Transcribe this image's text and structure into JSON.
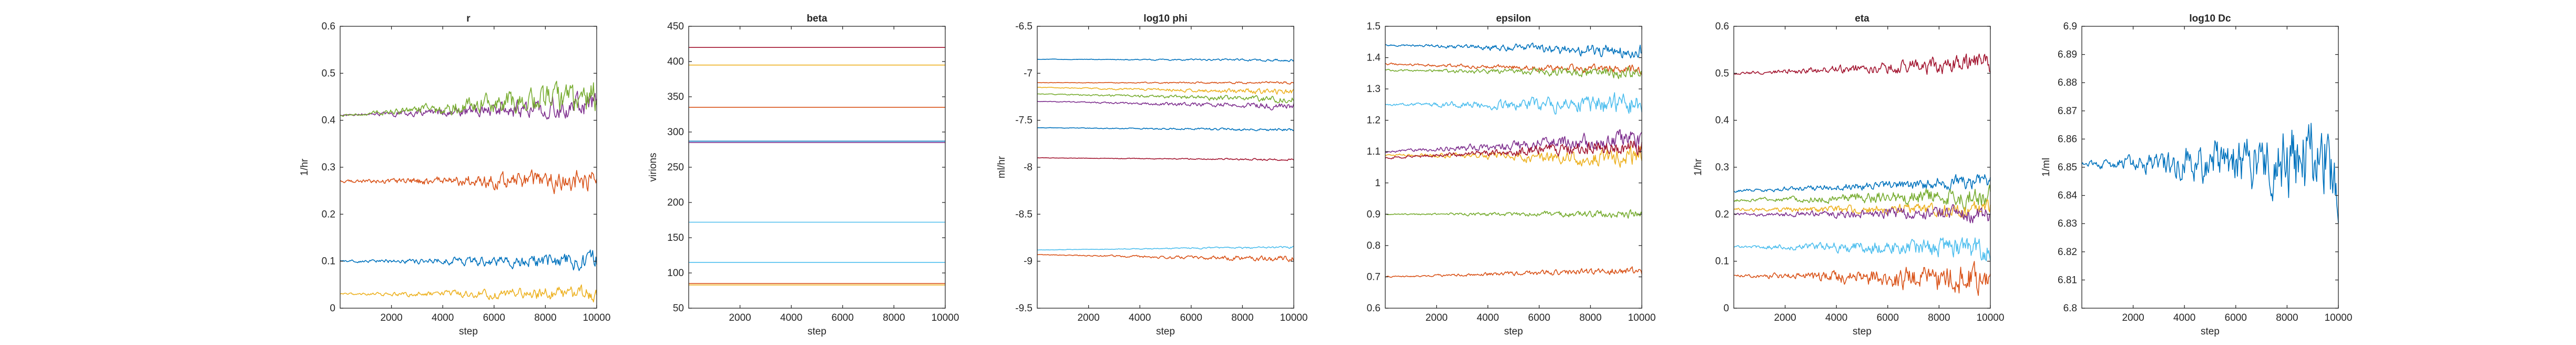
{
  "figure": {
    "line_colors": [
      "#0072BD",
      "#D95319",
      "#EDB120",
      "#7E2F8E",
      "#77AC30",
      "#4DBEEE",
      "#A2142F"
    ]
  },
  "chart_data": [
    {
      "type": "line",
      "title": "r",
      "xlabel": "step",
      "ylabel": "1/hr",
      "xlim": [
        0,
        10000
      ],
      "ylim": [
        0,
        0.6
      ],
      "xticks": [
        2000,
        4000,
        6000,
        8000,
        10000
      ],
      "yticks": [
        0,
        0.1,
        0.2,
        0.3,
        0.4,
        0.5,
        0.6
      ],
      "ytick_labels": [
        "0",
        "0.1",
        "0.2",
        "0.3",
        "0.4",
        "0.5",
        "0.6"
      ],
      "grid": false,
      "series": [
        {
          "color": "#0072BD",
          "start": 0.1,
          "end": 0.1,
          "noise_start": 0.002,
          "noise_end": 0.022
        },
        {
          "color": "#D95319",
          "start": 0.27,
          "end": 0.27,
          "noise_start": 0.003,
          "noise_end": 0.028
        },
        {
          "color": "#EDB120",
          "start": 0.03,
          "end": 0.03,
          "noise_start": 0.002,
          "noise_end": 0.018
        },
        {
          "color": "#7E2F8E",
          "start": 0.41,
          "end": 0.43,
          "noise_start": 0.002,
          "noise_end": 0.03
        },
        {
          "color": "#77AC30",
          "start": 0.41,
          "end": 0.45,
          "noise_start": 0.002,
          "noise_end": 0.04
        }
      ]
    },
    {
      "type": "line",
      "title": "beta",
      "xlabel": "step",
      "ylabel": "virions",
      "xlim": [
        0,
        10000
      ],
      "ylim": [
        50,
        450
      ],
      "xticks": [
        2000,
        4000,
        6000,
        8000,
        10000
      ],
      "yticks": [
        50,
        100,
        150,
        200,
        250,
        300,
        350,
        400,
        450
      ],
      "ytick_labels": [
        "50",
        "100",
        "150",
        "200",
        "250",
        "300",
        "350",
        "400",
        "450"
      ],
      "grid": false,
      "series": [
        {
          "color": "#A2142F",
          "start": 420,
          "end": 420,
          "noise_start": 0,
          "noise_end": 0
        },
        {
          "color": "#EDB120",
          "start": 395,
          "end": 395,
          "noise_start": 0,
          "noise_end": 0
        },
        {
          "color": "#D95319",
          "start": 335,
          "end": 335,
          "noise_start": 0,
          "noise_end": 0
        },
        {
          "color": "#0072BD",
          "start": 287,
          "end": 287,
          "noise_start": 0,
          "noise_end": 0
        },
        {
          "color": "#7E2F8E",
          "start": 285,
          "end": 285,
          "noise_start": 0,
          "noise_end": 0
        },
        {
          "color": "#4DBEEE",
          "start": 172,
          "end": 172,
          "noise_start": 0,
          "noise_end": 0
        },
        {
          "color": "#4DBEEE",
          "start": 115,
          "end": 115,
          "noise_start": 0,
          "noise_end": 0
        },
        {
          "color": "#D95319",
          "start": 85,
          "end": 85,
          "noise_start": 0,
          "noise_end": 0
        },
        {
          "color": "#EDB120",
          "start": 83,
          "end": 83,
          "noise_start": 0,
          "noise_end": 0
        }
      ]
    },
    {
      "type": "line",
      "title": "log10 phi",
      "xlabel": "step",
      "ylabel": "ml/hr",
      "xlim": [
        0,
        10000
      ],
      "ylim": [
        -9.5,
        -6.5
      ],
      "xticks": [
        2000,
        4000,
        6000,
        8000,
        10000
      ],
      "yticks": [
        -9.5,
        -9,
        -8.5,
        -8,
        -7.5,
        -7,
        -6.5
      ],
      "ytick_labels": [
        "-9.5",
        "-9",
        "-8.5",
        "-8",
        "-7.5",
        "-7",
        "-6.5"
      ],
      "grid": false,
      "series": [
        {
          "color": "#0072BD",
          "start": -6.85,
          "end": -6.86,
          "noise_start": 0.002,
          "noise_end": 0.015
        },
        {
          "color": "#D95319",
          "start": -7.1,
          "end": -7.1,
          "noise_start": 0.002,
          "noise_end": 0.015
        },
        {
          "color": "#EDB120",
          "start": -7.15,
          "end": -7.2,
          "noise_start": 0.003,
          "noise_end": 0.035
        },
        {
          "color": "#77AC30",
          "start": -7.22,
          "end": -7.28,
          "noise_start": 0.003,
          "noise_end": 0.04
        },
        {
          "color": "#7E2F8E",
          "start": -7.3,
          "end": -7.35,
          "noise_start": 0.003,
          "noise_end": 0.04
        },
        {
          "color": "#0072BD",
          "start": -7.58,
          "end": -7.6,
          "noise_start": 0.002,
          "noise_end": 0.018
        },
        {
          "color": "#A2142F",
          "start": -7.9,
          "end": -7.92,
          "noise_start": 0.002,
          "noise_end": 0.012
        },
        {
          "color": "#4DBEEE",
          "start": -8.88,
          "end": -8.85,
          "noise_start": 0.002,
          "noise_end": 0.012
        },
        {
          "color": "#D95319",
          "start": -8.93,
          "end": -8.98,
          "noise_start": 0.003,
          "noise_end": 0.035
        }
      ]
    },
    {
      "type": "line",
      "title": "epsilon",
      "xlabel": "step",
      "ylabel": "",
      "xlim": [
        0,
        10000
      ],
      "ylim": [
        0.6,
        1.5
      ],
      "xticks": [
        2000,
        4000,
        6000,
        8000,
        10000
      ],
      "yticks": [
        0.6,
        0.7,
        0.8,
        0.9,
        1.0,
        1.1,
        1.2,
        1.3,
        1.4,
        1.5
      ],
      "ytick_labels": [
        "0.6",
        "0.7",
        "0.8",
        "0.9",
        "1",
        "1.1",
        "1.2",
        "1.3",
        "1.4",
        "1.5"
      ],
      "grid": false,
      "series": [
        {
          "color": "#0072BD",
          "start": 1.44,
          "end": 1.42,
          "noise_start": 0.003,
          "noise_end": 0.025
        },
        {
          "color": "#D95319",
          "start": 1.38,
          "end": 1.36,
          "noise_start": 0.003,
          "noise_end": 0.018
        },
        {
          "color": "#77AC30",
          "start": 1.36,
          "end": 1.35,
          "noise_start": 0.003,
          "noise_end": 0.02
        },
        {
          "color": "#4DBEEE",
          "start": 1.25,
          "end": 1.25,
          "noise_start": 0.003,
          "noise_end": 0.04
        },
        {
          "color": "#7E2F8E",
          "start": 1.1,
          "end": 1.14,
          "noise_start": 0.003,
          "noise_end": 0.035
        },
        {
          "color": "#EDB120",
          "start": 1.09,
          "end": 1.08,
          "noise_start": 0.003,
          "noise_end": 0.035
        },
        {
          "color": "#A2142F",
          "start": 1.08,
          "end": 1.12,
          "noise_start": 0.003,
          "noise_end": 0.03
        },
        {
          "color": "#77AC30",
          "start": 0.9,
          "end": 0.9,
          "noise_start": 0.002,
          "noise_end": 0.015
        },
        {
          "color": "#D95319",
          "start": 0.7,
          "end": 0.72,
          "noise_start": 0.002,
          "noise_end": 0.015
        }
      ]
    },
    {
      "type": "line",
      "title": "eta",
      "xlabel": "step",
      "ylabel": "1/hr",
      "xlim": [
        0,
        10000
      ],
      "ylim": [
        0,
        0.6
      ],
      "xticks": [
        2000,
        4000,
        6000,
        8000,
        10000
      ],
      "yticks": [
        0,
        0.1,
        0.2,
        0.3,
        0.4,
        0.5,
        0.6
      ],
      "ytick_labels": [
        "0",
        "0.1",
        "0.2",
        "0.3",
        "0.4",
        "0.5",
        "0.6"
      ],
      "grid": false,
      "series": [
        {
          "color": "#A2142F",
          "start": 0.5,
          "end": 0.52,
          "noise_start": 0.003,
          "noise_end": 0.025
        },
        {
          "color": "#0072BD",
          "start": 0.25,
          "end": 0.27,
          "noise_start": 0.003,
          "noise_end": 0.018
        },
        {
          "color": "#77AC30",
          "start": 0.23,
          "end": 0.24,
          "noise_start": 0.003,
          "noise_end": 0.025
        },
        {
          "color": "#EDB120",
          "start": 0.21,
          "end": 0.21,
          "noise_start": 0.003,
          "noise_end": 0.02
        },
        {
          "color": "#7E2F8E",
          "start": 0.2,
          "end": 0.2,
          "noise_start": 0.003,
          "noise_end": 0.02
        },
        {
          "color": "#4DBEEE",
          "start": 0.13,
          "end": 0.13,
          "noise_start": 0.003,
          "noise_end": 0.03
        },
        {
          "color": "#D95319",
          "start": 0.07,
          "end": 0.06,
          "noise_start": 0.003,
          "noise_end": 0.04
        }
      ]
    },
    {
      "type": "line",
      "title": "log10 Dc",
      "xlabel": "step",
      "ylabel": "1/ml",
      "xlim": [
        0,
        10000
      ],
      "ylim": [
        6.8,
        6.9
      ],
      "xticks": [
        2000,
        4000,
        6000,
        8000,
        10000
      ],
      "yticks": [
        6.8,
        6.81,
        6.82,
        6.83,
        6.84,
        6.85,
        6.86,
        6.87,
        6.88,
        6.89,
        6.9
      ],
      "ytick_labels": [
        "6.8",
        "6.81",
        "6.82",
        "6.83",
        "6.84",
        "6.85",
        "6.86",
        "6.87",
        "6.88",
        "6.89",
        "6.9"
      ],
      "grid": false,
      "series": [
        {
          "color": "#0072BD",
          "start": 6.851,
          "end": 6.853,
          "noise_start": 0.001,
          "noise_end": 0.018
        }
      ]
    }
  ]
}
